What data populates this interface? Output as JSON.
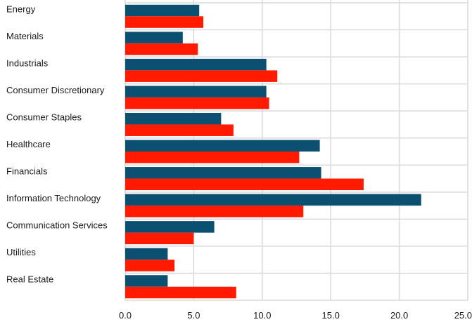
{
  "chart_data": {
    "type": "bar",
    "orientation": "horizontal",
    "title": "",
    "xlabel": "",
    "ylabel": "",
    "categories": [
      "Energy",
      "Materials",
      "Industrials",
      "Consumer Discretionary",
      "Consumer Staples",
      "Healthcare",
      "Financials",
      "Information Technology",
      "Communication Services",
      "Utilities",
      "Real Estate"
    ],
    "series": [
      {
        "color": "#0b4f71",
        "values": [
          5.4,
          4.2,
          10.3,
          10.3,
          7.0,
          14.2,
          14.3,
          21.6,
          6.5,
          3.1,
          3.1
        ]
      },
      {
        "color": "#ff1a00",
        "values": [
          5.7,
          5.3,
          11.1,
          10.5,
          7.9,
          12.7,
          17.4,
          13.0,
          5.0,
          3.6,
          8.1
        ]
      }
    ],
    "xlim": [
      0,
      25
    ],
    "xticks": [
      "0.0",
      "5.0",
      "10.0",
      "15.0",
      "20.0",
      "25.0"
    ],
    "grid": true,
    "legend": "none"
  }
}
